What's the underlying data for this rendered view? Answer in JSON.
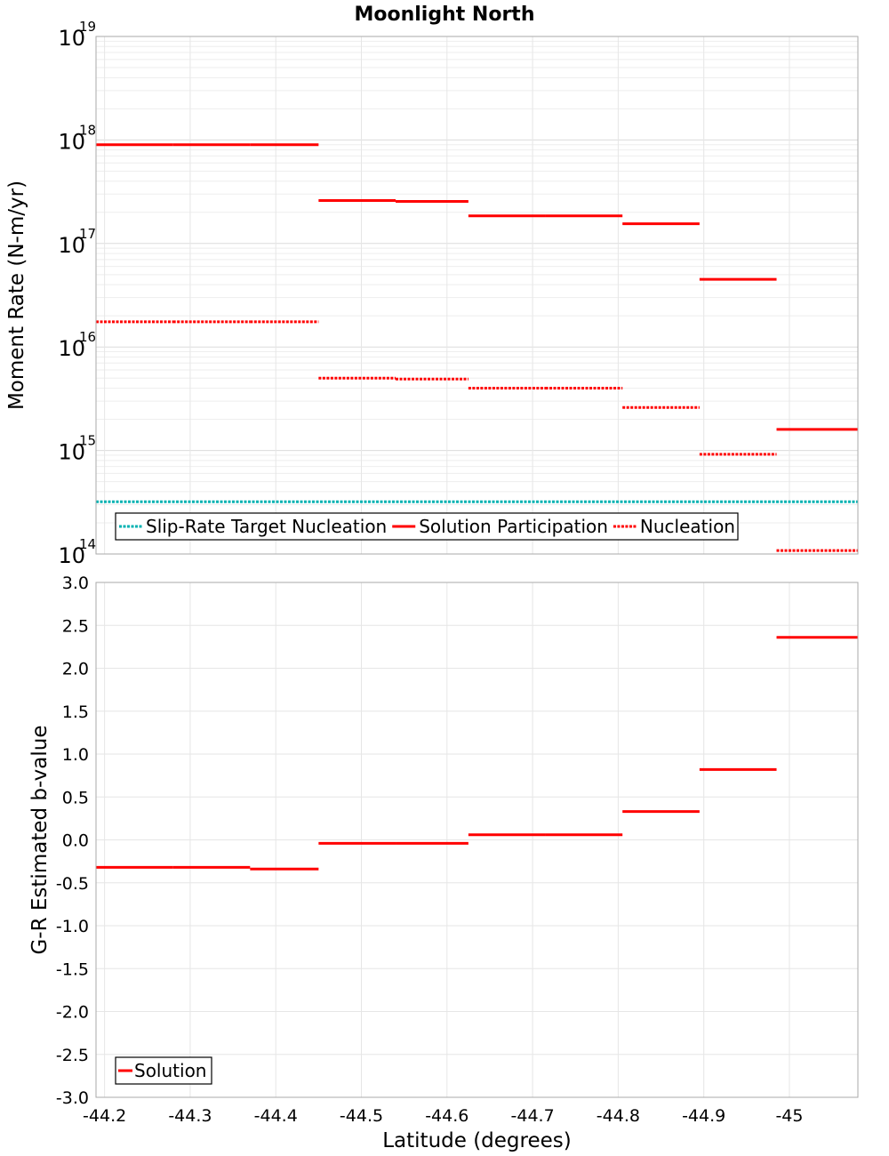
{
  "title": "Moonlight North",
  "chart_data": [
    {
      "type": "line",
      "subtype": "step",
      "title": "Moonlight North",
      "xlabel": "",
      "ylabel": "Moment Rate (N-m/yr)",
      "yscale": "log",
      "ylim": [
        100000000000000.0,
        1e+19
      ],
      "xlim": [
        -44.19,
        -45.08
      ],
      "x_reversed": true,
      "ytick_exponents": [
        "19",
        "18",
        "17",
        "16",
        "15",
        "14"
      ],
      "ytick_base": "10",
      "grid": true,
      "legend_position": "bottom-left",
      "series": [
        {
          "name": "Slip-Rate Target Nucleation",
          "style": "dotted",
          "color": "#00b2b2",
          "segments": [
            {
              "x0": -44.19,
              "x1": -45.08,
              "y": 320000000000000.0
            }
          ]
        },
        {
          "name": "Solution Participation",
          "style": "solid",
          "color": "#ff0000",
          "segments": [
            {
              "x0": -44.19,
              "x1": -44.28,
              "y": 9e+17
            },
            {
              "x0": -44.28,
              "x1": -44.37,
              "y": 9e+17
            },
            {
              "x0": -44.37,
              "x1": -44.45,
              "y": 9e+17
            },
            {
              "x0": -44.45,
              "x1": -44.54,
              "y": 2.6e+17
            },
            {
              "x0": -44.54,
              "x1": -44.625,
              "y": 2.55e+17
            },
            {
              "x0": -44.625,
              "x1": -44.715,
              "y": 1.85e+17
            },
            {
              "x0": -44.715,
              "x1": -44.805,
              "y": 1.85e+17
            },
            {
              "x0": -44.805,
              "x1": -44.895,
              "y": 1.55e+17
            },
            {
              "x0": -44.895,
              "x1": -44.985,
              "y": 4.5e+16
            },
            {
              "x0": -44.985,
              "x1": -45.08,
              "y": 1600000000000000.0
            }
          ]
        },
        {
          "name": "Nucleation",
          "style": "dotted",
          "color": "#ff0000",
          "segments": [
            {
              "x0": -44.19,
              "x1": -44.28,
              "y": 1.75e+16
            },
            {
              "x0": -44.28,
              "x1": -44.37,
              "y": 1.75e+16
            },
            {
              "x0": -44.37,
              "x1": -44.45,
              "y": 1.75e+16
            },
            {
              "x0": -44.45,
              "x1": -44.54,
              "y": 5000000000000000.0
            },
            {
              "x0": -44.54,
              "x1": -44.625,
              "y": 4900000000000000.0
            },
            {
              "x0": -44.625,
              "x1": -44.715,
              "y": 4000000000000000.0
            },
            {
              "x0": -44.715,
              "x1": -44.805,
              "y": 4000000000000000.0
            },
            {
              "x0": -44.805,
              "x1": -44.895,
              "y": 2600000000000000.0
            },
            {
              "x0": -44.895,
              "x1": -44.985,
              "y": 920000000000000.0
            },
            {
              "x0": -44.985,
              "x1": -45.08,
              "y": 108000000000000.0
            }
          ]
        }
      ]
    },
    {
      "type": "line",
      "subtype": "step",
      "xlabel": "Latitude (degrees)",
      "ylabel": "G-R Estimated b-value",
      "ylim": [
        -3.0,
        3.0
      ],
      "xlim": [
        -44.19,
        -45.08
      ],
      "x_reversed": true,
      "yticks": [
        "3.0",
        "2.5",
        "2.0",
        "1.5",
        "1.0",
        "0.5",
        "0.0",
        "-0.5",
        "-1.0",
        "-1.5",
        "-2.0",
        "-2.5",
        "-3.0"
      ],
      "xticks": [
        "-44.2",
        "-44.3",
        "-44.4",
        "-44.5",
        "-44.6",
        "-44.7",
        "-44.8",
        "-44.9",
        "-45"
      ],
      "grid": true,
      "legend_position": "bottom-left",
      "series": [
        {
          "name": "Solution",
          "style": "solid",
          "color": "#ff0000",
          "segments": [
            {
              "x0": -44.19,
              "x1": -44.28,
              "y": -0.32
            },
            {
              "x0": -44.28,
              "x1": -44.37,
              "y": -0.32
            },
            {
              "x0": -44.37,
              "x1": -44.45,
              "y": -0.34
            },
            {
              "x0": -44.45,
              "x1": -44.54,
              "y": -0.04
            },
            {
              "x0": -44.54,
              "x1": -44.625,
              "y": -0.04
            },
            {
              "x0": -44.625,
              "x1": -44.715,
              "y": 0.06
            },
            {
              "x0": -44.715,
              "x1": -44.805,
              "y": 0.06
            },
            {
              "x0": -44.805,
              "x1": -44.895,
              "y": 0.33
            },
            {
              "x0": -44.895,
              "x1": -44.985,
              "y": 0.82
            },
            {
              "x0": -44.985,
              "x1": -45.08,
              "y": 2.36
            }
          ]
        }
      ]
    }
  ]
}
